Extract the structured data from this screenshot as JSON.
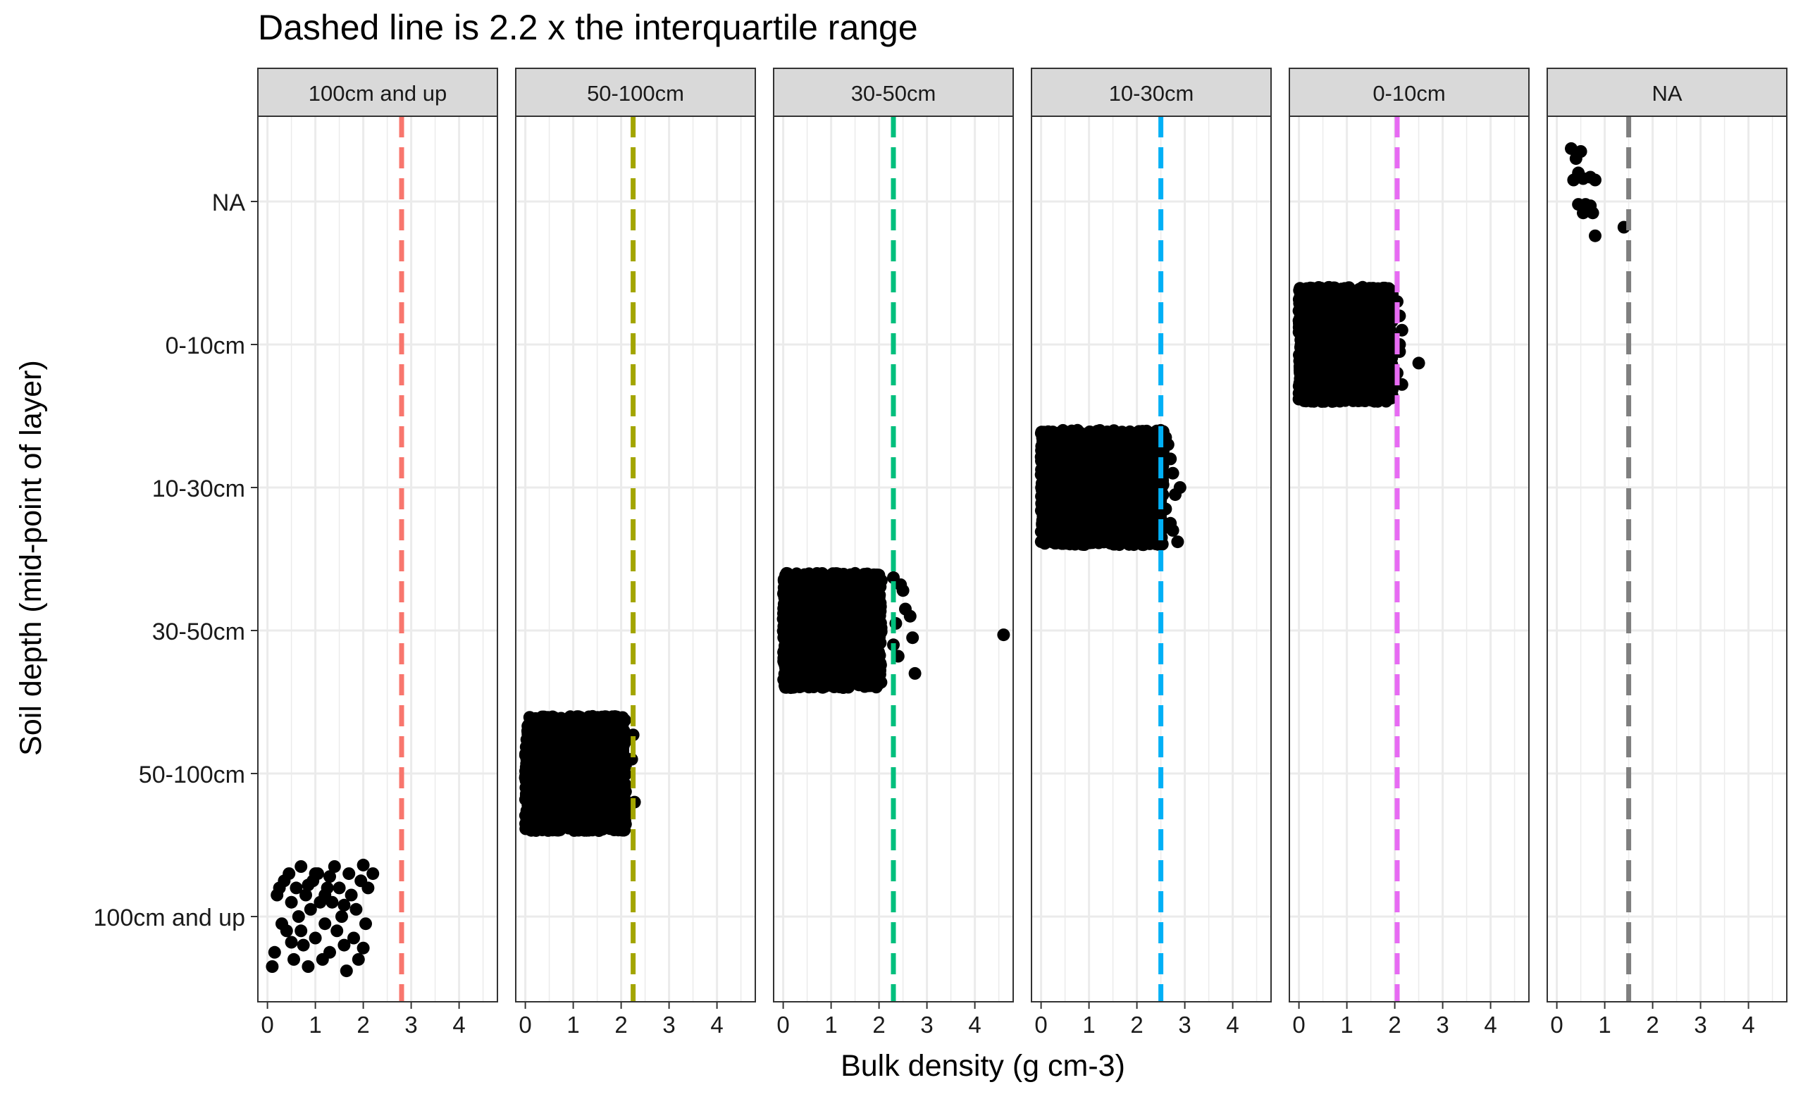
{
  "chart_data": {
    "type": "scatter",
    "title": "Dashed line is 2.2 x the interquartile range",
    "xlabel": "Bulk density (g cm-3)",
    "ylabel": "Soil depth (mid-point of layer)",
    "x_range": [
      -0.2,
      4.8
    ],
    "x_ticks": [
      "0",
      "1",
      "2",
      "3",
      "4"
    ],
    "y_categories": [
      "100cm and up",
      "50-100cm",
      "30-50cm",
      "10-30cm",
      "0-10cm",
      "NA"
    ],
    "facets": [
      {
        "label": "100cm and up",
        "color": "#F8766D",
        "threshold": 2.8,
        "depth": "100cm and up",
        "points": [
          [
            0.1,
            -0.35
          ],
          [
            0.15,
            -0.25
          ],
          [
            0.2,
            0.15
          ],
          [
            0.25,
            0.2
          ],
          [
            0.35,
            0.25
          ],
          [
            0.4,
            -0.1
          ],
          [
            0.45,
            0.3
          ],
          [
            0.5,
            0.1
          ],
          [
            0.55,
            -0.3
          ],
          [
            0.6,
            0.2
          ],
          [
            0.65,
            0.0
          ],
          [
            0.7,
            0.35
          ],
          [
            0.75,
            -0.2
          ],
          [
            0.8,
            0.15
          ],
          [
            0.85,
            -0.35
          ],
          [
            0.9,
            0.05
          ],
          [
            0.95,
            0.25
          ],
          [
            1.0,
            -0.15
          ],
          [
            1.05,
            0.3
          ],
          [
            1.1,
            0.1
          ],
          [
            1.15,
            -0.3
          ],
          [
            1.2,
            -0.05
          ],
          [
            1.25,
            0.2
          ],
          [
            1.3,
            -0.25
          ],
          [
            1.35,
            0.1
          ],
          [
            1.4,
            0.35
          ],
          [
            1.45,
            -0.1
          ],
          [
            1.5,
            0.2
          ],
          [
            1.55,
            0.0
          ],
          [
            1.6,
            -0.2
          ],
          [
            1.65,
            -0.38
          ],
          [
            1.7,
            0.3
          ],
          [
            1.75,
            0.15
          ],
          [
            1.8,
            -0.15
          ],
          [
            1.85,
            0.05
          ],
          [
            1.9,
            -0.3
          ],
          [
            1.95,
            0.25
          ],
          [
            2.0,
            0.36
          ],
          [
            2.05,
            -0.05
          ],
          [
            2.1,
            0.2
          ],
          [
            2.2,
            0.3
          ],
          [
            0.3,
            -0.05
          ],
          [
            0.7,
            -0.1
          ],
          [
            1.0,
            0.3
          ],
          [
            1.2,
            0.15
          ],
          [
            0.85,
            0.22
          ],
          [
            1.6,
            0.08
          ],
          [
            0.5,
            -0.18
          ],
          [
            1.3,
            0.28
          ],
          [
            2.0,
            -0.22
          ]
        ]
      },
      {
        "label": "50-100cm",
        "color": "#A3A500",
        "threshold": 2.25,
        "depth": "50-100cm",
        "dense_range": [
          0.0,
          2.1
        ],
        "points": [
          [
            2.25,
            0.27
          ],
          [
            2.28,
            -0.2
          ],
          [
            2.22,
            0.1
          ]
        ]
      },
      {
        "label": "30-50cm",
        "color": "#00BF7D",
        "threshold": 2.3,
        "depth": "30-50cm",
        "dense_range": [
          0.0,
          2.05
        ],
        "points": [
          [
            2.3,
            0.37
          ],
          [
            2.45,
            0.32
          ],
          [
            2.55,
            0.15
          ],
          [
            2.65,
            0.1
          ],
          [
            2.7,
            -0.05
          ],
          [
            2.3,
            -0.1
          ],
          [
            2.4,
            -0.18
          ],
          [
            2.75,
            -0.3
          ],
          [
            2.5,
            0.28
          ],
          [
            2.35,
            0.05
          ],
          [
            4.6,
            -0.03
          ]
        ]
      },
      {
        "label": "10-30cm",
        "color": "#00B0F6",
        "threshold": 2.5,
        "depth": "10-30cm",
        "dense_range": [
          0.0,
          2.55
        ],
        "points": [
          [
            2.6,
            0.35
          ],
          [
            2.7,
            0.2
          ],
          [
            2.75,
            0.1
          ],
          [
            2.8,
            -0.05
          ],
          [
            2.9,
            0.0
          ],
          [
            2.6,
            -0.15
          ],
          [
            2.75,
            -0.3
          ],
          [
            2.85,
            -0.38
          ],
          [
            2.65,
            0.3
          ],
          [
            2.7,
            -0.25
          ]
        ]
      },
      {
        "label": "0-10cm",
        "color": "#E76BF3",
        "threshold": 2.05,
        "depth": "0-10cm",
        "dense_range": [
          0.0,
          1.95
        ],
        "points": [
          [
            2.05,
            0.3
          ],
          [
            2.1,
            0.2
          ],
          [
            2.15,
            0.1
          ],
          [
            2.1,
            -0.05
          ],
          [
            2.05,
            -0.2
          ],
          [
            2.15,
            -0.28
          ],
          [
            2.5,
            -0.13
          ],
          [
            2.1,
            0.0
          ]
        ]
      },
      {
        "label": "NA",
        "color": "#7F7F7F",
        "threshold": 1.5,
        "depth": "NA",
        "points": [
          [
            0.3,
            0.37
          ],
          [
            0.4,
            0.3
          ],
          [
            0.5,
            0.35
          ],
          [
            0.45,
            0.2
          ],
          [
            0.55,
            0.16
          ],
          [
            0.7,
            0.17
          ],
          [
            0.35,
            0.15
          ],
          [
            0.8,
            0.15
          ],
          [
            0.45,
            -0.02
          ],
          [
            0.6,
            -0.02
          ],
          [
            0.7,
            -0.03
          ],
          [
            0.55,
            -0.08
          ],
          [
            0.75,
            -0.08
          ],
          [
            1.4,
            -0.18
          ],
          [
            0.8,
            -0.24
          ]
        ]
      }
    ]
  }
}
